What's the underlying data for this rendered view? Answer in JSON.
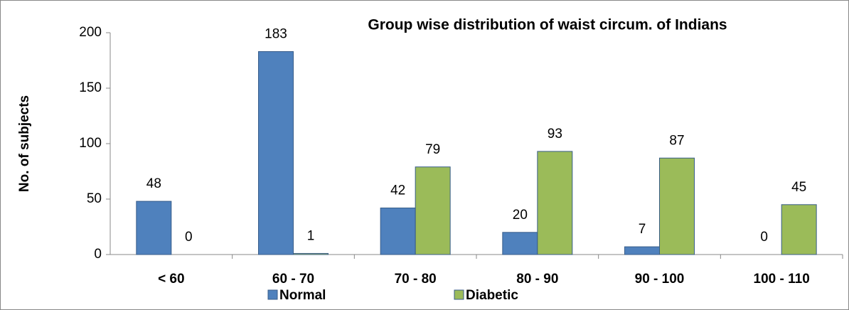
{
  "chart_data": {
    "type": "bar",
    "title": "Group wise distribution of waist circum. of Indians",
    "y_label": "No. of subjects",
    "categories": [
      "< 60",
      "60 - 70",
      "70 - 80",
      "80 - 90",
      "90 - 100",
      "100 - 110"
    ],
    "series": [
      {
        "name": "Normal",
        "color": "#4f81bd",
        "values": [
          48,
          183,
          42,
          20,
          7,
          0
        ]
      },
      {
        "name": "Diabetic",
        "color": "#9bbb59",
        "values": [
          0,
          1,
          79,
          93,
          87,
          45
        ]
      }
    ],
    "ylim": [
      0,
      200
    ],
    "yticks": [
      0,
      50,
      100,
      150,
      200
    ],
    "grid": false,
    "legend": "bottom"
  }
}
